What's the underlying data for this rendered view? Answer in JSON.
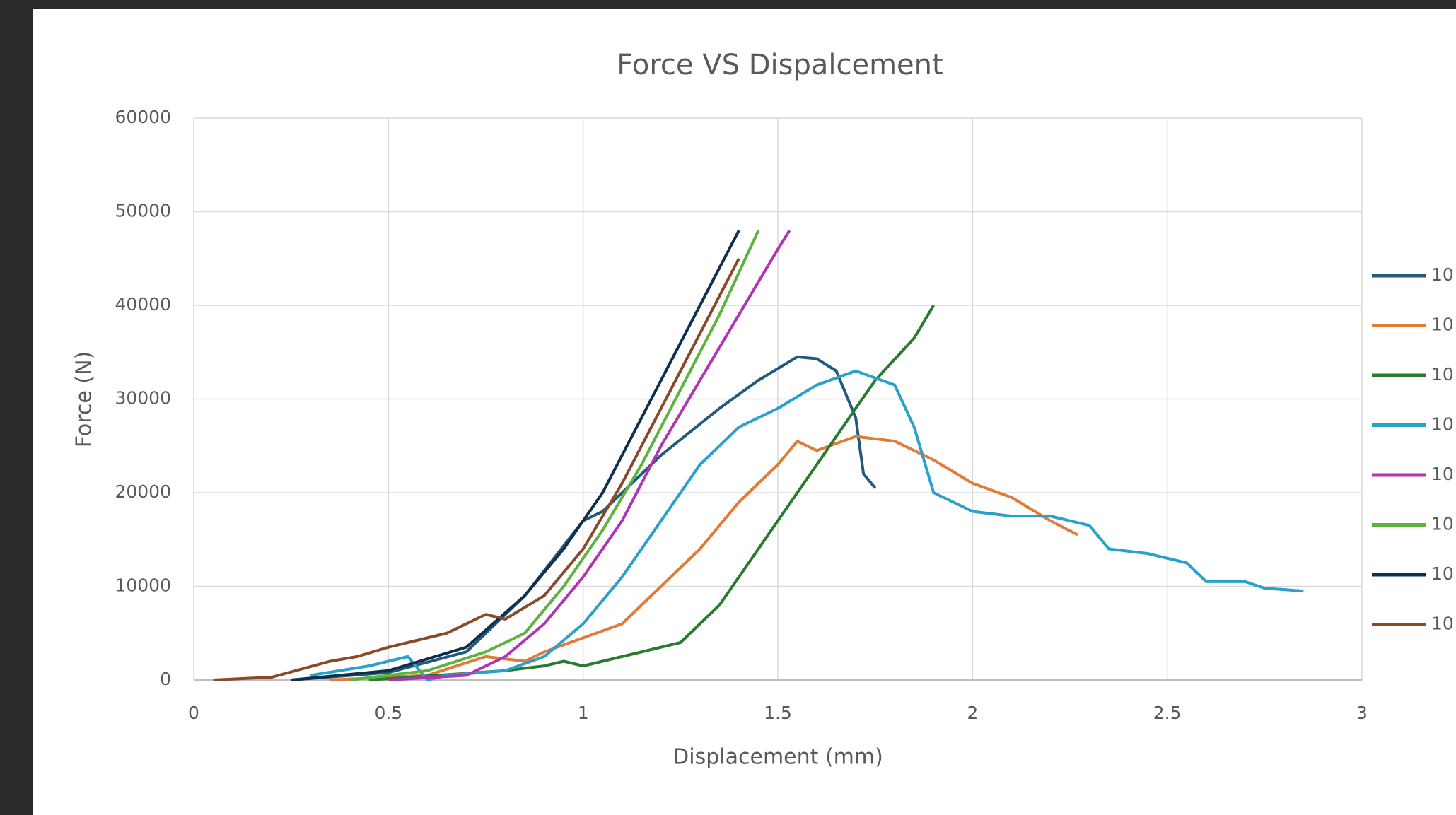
{
  "chart_data": {
    "type": "line",
    "title": "Force VS Dispalcement",
    "x_label": "Displacement  (mm)",
    "y_label": "Force (N)",
    "xlim": [
      0,
      3
    ],
    "xticks": [
      0,
      0.5,
      1,
      1.5,
      2,
      2.5,
      3
    ],
    "ylim": [
      0,
      60000
    ],
    "yticks": [
      0,
      10000,
      20000,
      30000,
      40000,
      50000,
      60000
    ],
    "grid": true,
    "legend": "right",
    "series": [
      {
        "name": "10",
        "color": "#235a7c",
        "x": [
          0.25,
          0.5,
          0.7,
          0.85,
          1.0,
          1.05,
          1.2,
          1.35,
          1.45,
          1.55,
          1.6,
          1.65,
          1.7,
          1.72,
          1.75
        ],
        "values": [
          0,
          800,
          3000,
          9000,
          17000,
          18000,
          24000,
          29000,
          32000,
          34500,
          34300,
          33000,
          28000,
          22000,
          20500
        ]
      },
      {
        "name": "10",
        "color": "#e07b39",
        "x": [
          0.35,
          0.6,
          0.75,
          0.85,
          0.9,
          1.0,
          1.1,
          1.2,
          1.3,
          1.4,
          1.5,
          1.55,
          1.6,
          1.7,
          1.8,
          1.9,
          2.0,
          2.1,
          2.2,
          2.27
        ],
        "values": [
          0,
          500,
          2500,
          2000,
          3000,
          4500,
          6000,
          10000,
          14000,
          19000,
          23000,
          25500,
          24500,
          26000,
          25500,
          23500,
          21000,
          19500,
          17000,
          15500
        ]
      },
      {
        "name": "10",
        "color": "#2a7a2f",
        "x": [
          0.45,
          0.8,
          0.9,
          0.95,
          1.0,
          1.1,
          1.2,
          1.25,
          1.35,
          1.45,
          1.55,
          1.65,
          1.75,
          1.85,
          1.9
        ],
        "values": [
          0,
          1000,
          1500,
          2000,
          1500,
          2500,
          3500,
          4000,
          8000,
          14000,
          20000,
          26000,
          32000,
          36500,
          40000
        ]
      },
      {
        "name": "10",
        "color": "#2aa1cc",
        "x": [
          0.3,
          0.45,
          0.55,
          0.6,
          0.65,
          0.8,
          0.9,
          1.0,
          1.1,
          1.2,
          1.3,
          1.4,
          1.5,
          1.6,
          1.7,
          1.8,
          1.85,
          1.9,
          2.0,
          2.1,
          2.2,
          2.3,
          2.35,
          2.45,
          2.55,
          2.6,
          2.7,
          2.75,
          2.85
        ],
        "values": [
          500,
          1500,
          2500,
          0,
          500,
          1000,
          2500,
          6000,
          11000,
          17000,
          23000,
          27000,
          29000,
          31500,
          33000,
          31500,
          27000,
          20000,
          18000,
          17500,
          17500,
          16500,
          14000,
          13500,
          12500,
          10500,
          10500,
          9800,
          9500
        ]
      },
      {
        "name": "10",
        "color": "#b035b5",
        "x": [
          0.5,
          0.7,
          0.8,
          0.9,
          1.0,
          1.1,
          1.2,
          1.3,
          1.4,
          1.5,
          1.53
        ],
        "values": [
          0,
          500,
          2500,
          6000,
          11000,
          17000,
          25000,
          32000,
          39000,
          46000,
          48000
        ]
      },
      {
        "name": "10",
        "color": "#5cb340",
        "x": [
          0.4,
          0.6,
          0.75,
          0.85,
          0.95,
          1.05,
          1.15,
          1.25,
          1.35,
          1.45
        ],
        "values": [
          0,
          1000,
          3000,
          5000,
          10000,
          16000,
          23000,
          31000,
          39000,
          48000
        ]
      },
      {
        "name": "10",
        "color": "#0f2f4f",
        "x": [
          0.25,
          0.5,
          0.7,
          0.85,
          0.95,
          1.05,
          1.15,
          1.25,
          1.35,
          1.4
        ],
        "values": [
          0,
          1000,
          3500,
          9000,
          14000,
          20000,
          28000,
          36000,
          44000,
          48000
        ]
      },
      {
        "name": "10",
        "color": "#8a4a2a",
        "x": [
          0.05,
          0.2,
          0.35,
          0.42,
          0.5,
          0.65,
          0.75,
          0.8,
          0.9,
          1.0,
          1.1,
          1.2,
          1.3,
          1.4
        ],
        "values": [
          0,
          300,
          2000,
          2500,
          3500,
          5000,
          7000,
          6500,
          9000,
          14000,
          21000,
          29000,
          37000,
          45000
        ]
      }
    ]
  }
}
